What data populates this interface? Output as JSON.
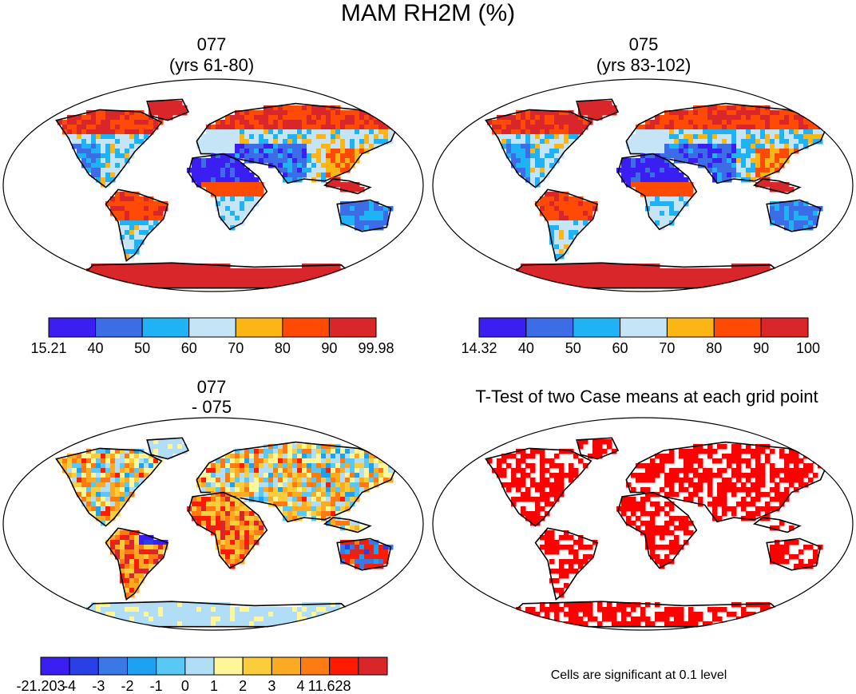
{
  "title": "MAM RH2M (%)",
  "colors": {
    "rh": [
      "#3a1ef2",
      "#3c6de6",
      "#1fb3f5",
      "#c5e5f7",
      "#fbb615",
      "#ff4a05",
      "#d8262a"
    ],
    "diff": [
      "#3a1ef2",
      "#2840e6",
      "#3a78e6",
      "#1da2f0",
      "#5ac8f5",
      "#b2ddf7",
      "#fff69a",
      "#fbcd3a",
      "#fbaa22",
      "#ff7a10",
      "#ff1a00",
      "#d8262a"
    ],
    "land_default": "#6eb7ff",
    "significant": "#ff0000",
    "coast": "#000000"
  },
  "panels": [
    {
      "id": "p1",
      "title_line1": "077",
      "title_line2": "(yrs 61-80)",
      "colorbar": {
        "labels": [
          "15.21",
          "40",
          "50",
          "60",
          "70",
          "80",
          "90",
          "99.98"
        ]
      }
    },
    {
      "id": "p2",
      "title_line1": "075",
      "title_line2": "(yrs 83-102)",
      "colorbar": {
        "labels": [
          "14.32",
          "40",
          "50",
          "60",
          "70",
          "80",
          "90",
          "100"
        ]
      }
    },
    {
      "id": "p3",
      "title_line1": "077",
      "title_line2": "- 075",
      "colorbar": {
        "labels": [
          "-21.203",
          "-4",
          "-3",
          "-2",
          "-1",
          "0",
          "1",
          "2",
          "3",
          "4",
          "11.628"
        ]
      }
    },
    {
      "id": "p4",
      "title_line1": "T-Test of two Case means at each grid point",
      "title_line2": "",
      "note": "Cells are significant at 0.1 level"
    }
  ],
  "chart_data": [
    {
      "type": "heatmap",
      "title": "077 (yrs 61-80)",
      "projection": "Robinson",
      "variable": "RH2M",
      "units": "%",
      "levels": [
        15.21,
        40,
        50,
        60,
        70,
        80,
        90,
        99.98
      ]
    },
    {
      "type": "heatmap",
      "title": "075 (yrs 83-102)",
      "projection": "Robinson",
      "variable": "RH2M",
      "units": "%",
      "levels": [
        14.32,
        40,
        50,
        60,
        70,
        80,
        90,
        100
      ]
    },
    {
      "type": "heatmap",
      "title": "077 - 075",
      "projection": "Robinson",
      "variable": "RH2M difference",
      "units": "%",
      "levels": [
        -21.203,
        -4,
        -3,
        -2,
        -1,
        0,
        1,
        2,
        3,
        4,
        11.628
      ]
    },
    {
      "type": "heatmap",
      "title": "T-Test of two Case means at each grid point",
      "projection": "Robinson",
      "significance_level": 0.1
    }
  ]
}
